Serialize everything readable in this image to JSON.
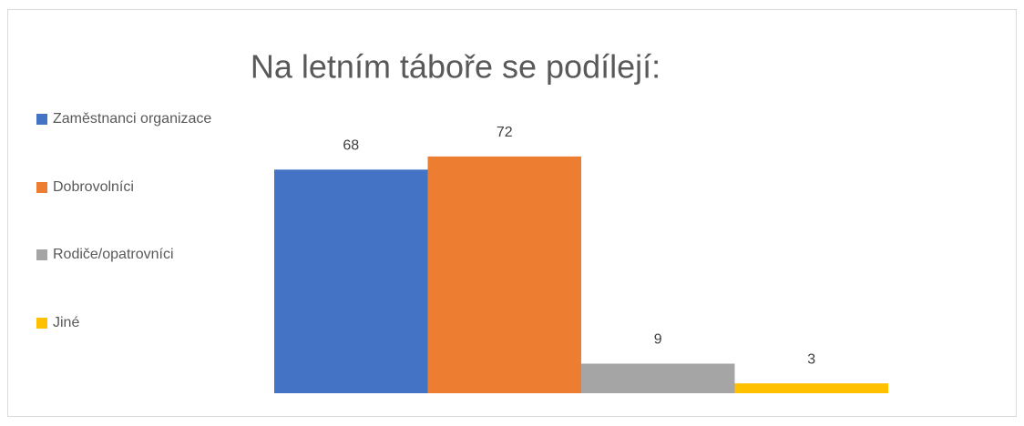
{
  "chart_data": {
    "type": "bar",
    "title": "Na letním táboře se podílejí:",
    "series": [
      {
        "name": "Zaměstnanci organizace",
        "color": "#4472c4",
        "values": [
          68
        ]
      },
      {
        "name": "Dobrovolníci",
        "color": "#ed7d31",
        "values": [
          72
        ]
      },
      {
        "name": "Rodiče/opatrovníci",
        "color": "#a5a5a5",
        "values": [
          9
        ]
      },
      {
        "name": "Jiné",
        "color": "#ffc000",
        "values": [
          3
        ]
      }
    ],
    "ylim": [
      0,
      80
    ],
    "legend": "left"
  }
}
